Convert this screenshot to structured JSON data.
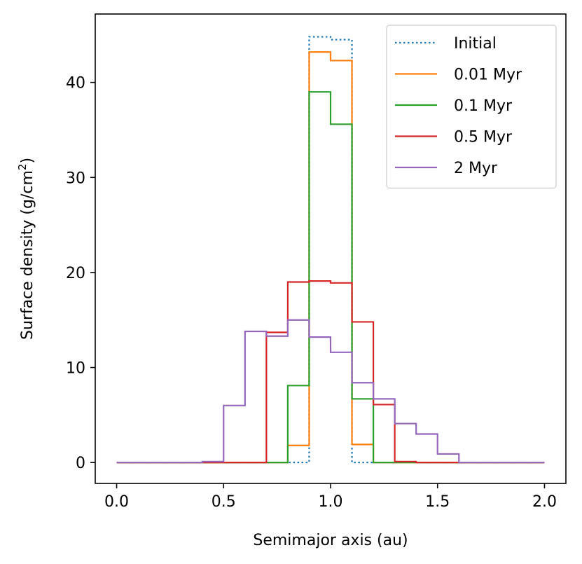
{
  "chart_data": {
    "type": "line",
    "title": "",
    "xlabel": "Semimajor axis (au)",
    "ylabel": "Surface density (g/cm",
    "ylabel_sup": "2",
    "ylabel_close": ")",
    "xlim": [
      -0.1,
      2.1
    ],
    "ylim": [
      -2.2,
      47.2
    ],
    "xticks": [
      0.0,
      0.5,
      1.0,
      1.5,
      2.0
    ],
    "xtick_labels": [
      "0.0",
      "0.5",
      "1.0",
      "1.5",
      "2.0"
    ],
    "yticks": [
      0,
      10,
      20,
      30,
      40
    ],
    "ytick_labels": [
      "0",
      "10",
      "20",
      "30",
      "40"
    ],
    "grid": false,
    "legend_position": "upper right",
    "bin_edges": [
      0.0,
      0.1,
      0.2,
      0.3,
      0.4,
      0.5,
      0.6,
      0.7,
      0.8,
      0.9,
      1.0,
      1.1,
      1.2,
      1.3,
      1.4,
      1.5,
      1.6,
      1.7,
      1.8,
      1.9,
      2.0
    ],
    "series": [
      {
        "name": "Initial",
        "color": "#1f77b4",
        "style": "dotted",
        "values": [
          0,
          0,
          0,
          0,
          0,
          0,
          0,
          0,
          0,
          44.8,
          44.5,
          0,
          0,
          0,
          0,
          0,
          0,
          0,
          0,
          0
        ]
      },
      {
        "name": "0.01 Myr",
        "color": "#ff7f0e",
        "style": "solid",
        "values": [
          0,
          0,
          0,
          0,
          0,
          0,
          0,
          0,
          1.8,
          43.2,
          42.3,
          1.9,
          0,
          0,
          0,
          0,
          0,
          0,
          0,
          0
        ]
      },
      {
        "name": "0.1 Myr",
        "color": "#2ca02c",
        "style": "solid",
        "values": [
          0,
          0,
          0,
          0,
          0,
          0,
          0,
          0,
          8.1,
          39.0,
          35.6,
          6.7,
          0,
          0,
          0,
          0,
          0,
          0,
          0,
          0
        ]
      },
      {
        "name": "0.5 Myr",
        "color": "#d62728",
        "style": "solid",
        "values": [
          0,
          0,
          0,
          0,
          0,
          0,
          0,
          13.7,
          19.0,
          19.1,
          18.9,
          14.8,
          6.1,
          0.1,
          0,
          0,
          0,
          0,
          0,
          0
        ]
      },
      {
        "name": "2 Myr",
        "color": "#9467bd",
        "style": "solid",
        "values": [
          0,
          0,
          0,
          0,
          0.1,
          6.0,
          13.8,
          13.3,
          15.0,
          13.2,
          11.6,
          8.4,
          6.7,
          4.1,
          3.0,
          0.9,
          0,
          0,
          0,
          0
        ]
      }
    ]
  }
}
